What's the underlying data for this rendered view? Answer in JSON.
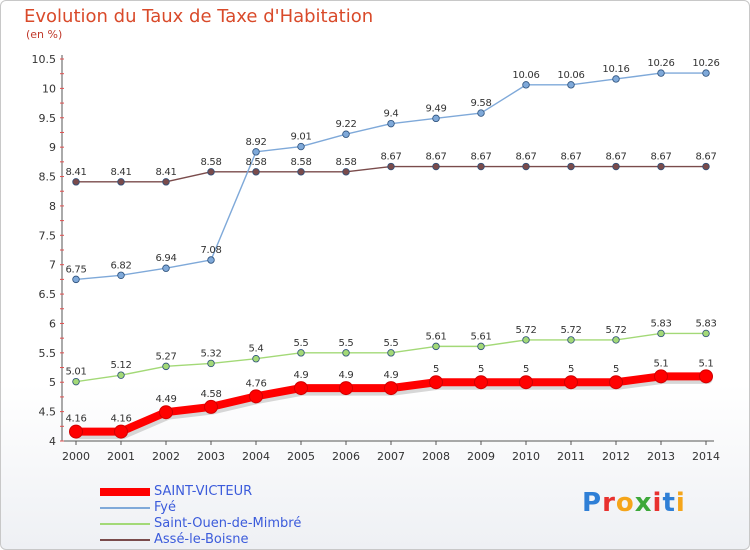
{
  "header": {
    "title": "Evolution du Taux de Taxe d'Habitation",
    "unit": "(en %)"
  },
  "logo": {
    "text": "Proxiti",
    "letter_colors": [
      "#2f7fd6",
      "#e8312f",
      "#f5a51a",
      "#3da83a",
      "#e8312f",
      "#2f7fd6",
      "#f5a51a"
    ]
  },
  "chart_data": {
    "type": "line",
    "title": "Evolution du Taux de Taxe d'Habitation",
    "ylabel": "(en %)",
    "xlabel": "",
    "x": [
      "2000",
      "2001",
      "2002",
      "2003",
      "2004",
      "2005",
      "2006",
      "2007",
      "2008",
      "2009",
      "2010",
      "2011",
      "2012",
      "2013",
      "2014"
    ],
    "ylim": [
      4,
      10.5
    ],
    "yticks": [
      "4",
      "4.5",
      "5",
      "5.5",
      "6",
      "6.5",
      "7",
      "7.5",
      "8",
      "8.5",
      "9",
      "9.5",
      "10",
      "10.5"
    ],
    "grid": false,
    "legend": "bottom-left",
    "series": [
      {
        "name": "SAINT-VICTEUR",
        "color": "#ff0000",
        "values": [
          4.16,
          4.16,
          4.49,
          4.58,
          4.76,
          4.9,
          4.9,
          4.9,
          5,
          5,
          5,
          5,
          5,
          5.1,
          5.1
        ],
        "labels": [
          "4.16",
          "4.16",
          "4.49",
          "4.58",
          "4.76",
          "4.9",
          "4.9",
          "4.9",
          "5",
          "5",
          "5",
          "5",
          "5",
          "5.1",
          "5.1"
        ]
      },
      {
        "name": "Fyé",
        "color": "#7fa9d9",
        "values": [
          6.75,
          6.82,
          6.94,
          7.08,
          8.92,
          9.01,
          9.22,
          9.4,
          9.49,
          9.58,
          10.06,
          10.06,
          10.16,
          10.26,
          10.26
        ],
        "labels": [
          "6.75",
          "6.82",
          "6.94",
          "7.08",
          "8.92",
          "9.01",
          "9.22",
          "9.4",
          "9.49",
          "9.58",
          "10.06",
          "10.06",
          "10.16",
          "10.26",
          "10.26"
        ]
      },
      {
        "name": "Saint-Ouen-de-Mimbré",
        "color": "#a3d977",
        "values": [
          5.01,
          5.12,
          5.27,
          5.32,
          5.4,
          5.5,
          5.5,
          5.5,
          5.61,
          5.61,
          5.72,
          5.72,
          5.72,
          5.83,
          5.83
        ],
        "labels": [
          "5.01",
          "5.12",
          "5.27",
          "5.32",
          "5.4",
          "5.5",
          "5.5",
          "5.5",
          "5.61",
          "5.61",
          "5.72",
          "5.72",
          "5.72",
          "5.83",
          "5.83"
        ]
      },
      {
        "name": "Assé-le-Boisne",
        "color": "#7a4b4b",
        "values": [
          8.41,
          8.41,
          8.41,
          8.58,
          8.58,
          8.58,
          8.58,
          8.67,
          8.67,
          8.67,
          8.67,
          8.67,
          8.67,
          8.67,
          8.67
        ],
        "labels": [
          "8.41",
          "8.41",
          "8.41",
          "8.58",
          "8.58",
          "8.58",
          "8.58",
          "8.67",
          "8.67",
          "8.67",
          "8.67",
          "8.67",
          "8.67",
          "8.67",
          "8.67"
        ]
      }
    ]
  }
}
